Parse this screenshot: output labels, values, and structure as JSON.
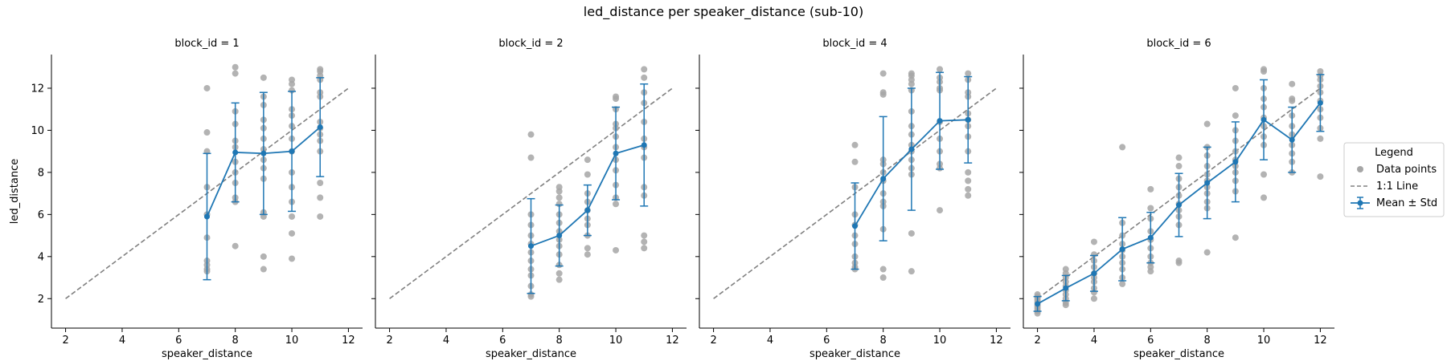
{
  "figure": {
    "title": "led_distance per speaker_distance (sub-10)"
  },
  "legend": {
    "title": "Legend",
    "items": [
      {
        "label": "Data points",
        "kind": "scatter"
      },
      {
        "label": "1:1 Line",
        "kind": "dashed"
      },
      {
        "label": "Mean ± Std",
        "kind": "errorbar"
      }
    ]
  },
  "colors": {
    "points": "#a6a6a6",
    "mean": "#1f77b4",
    "identity": "#808080"
  },
  "chart_data": [
    {
      "type": "scatter",
      "title": "block_id = 1",
      "xlabel": "speaker_distance",
      "ylabel": "led_distance",
      "xlim": [
        1.5,
        12.5
      ],
      "ylim": [
        0.6,
        13.6
      ],
      "xticks": [
        2,
        4,
        6,
        8,
        10,
        12
      ],
      "yticks": [
        2,
        4,
        6,
        8,
        10,
        12
      ],
      "identity_line": [
        [
          2,
          2
        ],
        [
          12,
          12
        ]
      ],
      "mean": {
        "x": [
          7,
          8,
          9,
          10,
          11
        ],
        "y": [
          5.9,
          8.95,
          8.9,
          9.0,
          10.15
        ],
        "std": [
          3.0,
          2.35,
          2.9,
          2.85,
          2.35
        ]
      },
      "points": [
        [
          7,
          12.0
        ],
        [
          7,
          9.9
        ],
        [
          7,
          9.0
        ],
        [
          7,
          7.3
        ],
        [
          7,
          6.0
        ],
        [
          7,
          4.9
        ],
        [
          7,
          3.8
        ],
        [
          7,
          3.6
        ],
        [
          7,
          3.4
        ],
        [
          7,
          3.3
        ],
        [
          8,
          13.0
        ],
        [
          8,
          12.7
        ],
        [
          8,
          10.9
        ],
        [
          8,
          10.3
        ],
        [
          8,
          9.5
        ],
        [
          8,
          9.2
        ],
        [
          8,
          8.5
        ],
        [
          8,
          8.0
        ],
        [
          8,
          7.5
        ],
        [
          8,
          6.8
        ],
        [
          8,
          6.6
        ],
        [
          8,
          4.5
        ],
        [
          9,
          12.5
        ],
        [
          9,
          11.6
        ],
        [
          9,
          11.2
        ],
        [
          9,
          10.5
        ],
        [
          9,
          10.1
        ],
        [
          9,
          9.6
        ],
        [
          9,
          9.1
        ],
        [
          9,
          8.6
        ],
        [
          9,
          8.2
        ],
        [
          9,
          7.7
        ],
        [
          9,
          6.1
        ],
        [
          9,
          5.9
        ],
        [
          9,
          4.0
        ],
        [
          9,
          3.4
        ],
        [
          10,
          12.4
        ],
        [
          10,
          12.2
        ],
        [
          10,
          11.9
        ],
        [
          10,
          11.0
        ],
        [
          10,
          10.7
        ],
        [
          10,
          10.2
        ],
        [
          10,
          9.6
        ],
        [
          10,
          9.0
        ],
        [
          10,
          8.0
        ],
        [
          10,
          7.3
        ],
        [
          10,
          6.6
        ],
        [
          10,
          5.9
        ],
        [
          10,
          5.1
        ],
        [
          10,
          3.9
        ],
        [
          11,
          12.9
        ],
        [
          11,
          12.8
        ],
        [
          11,
          12.6
        ],
        [
          11,
          12.4
        ],
        [
          11,
          11.8
        ],
        [
          11,
          11.6
        ],
        [
          11,
          10.4
        ],
        [
          11,
          10.1
        ],
        [
          11,
          9.8
        ],
        [
          11,
          9.5
        ],
        [
          11,
          9.0
        ],
        [
          11,
          7.5
        ],
        [
          11,
          6.8
        ],
        [
          11,
          5.9
        ]
      ]
    },
    {
      "type": "scatter",
      "title": "block_id = 2",
      "xlabel": "speaker_distance",
      "ylabel": "",
      "xlim": [
        1.5,
        12.5
      ],
      "ylim": [
        0.6,
        13.6
      ],
      "xticks": [
        2,
        4,
        6,
        8,
        10,
        12
      ],
      "yticks": [
        2,
        4,
        6,
        8,
        10,
        12
      ],
      "identity_line": [
        [
          2,
          2
        ],
        [
          12,
          12
        ]
      ],
      "mean": {
        "x": [
          7,
          8,
          9,
          10,
          11
        ],
        "y": [
          4.5,
          5.0,
          6.2,
          8.9,
          9.3
        ],
        "std": [
          2.25,
          1.45,
          1.2,
          2.2,
          2.9
        ]
      },
      "points": [
        [
          7,
          9.8
        ],
        [
          7,
          8.7
        ],
        [
          7,
          6.0
        ],
        [
          7,
          5.5
        ],
        [
          7,
          5.0
        ],
        [
          7,
          4.6
        ],
        [
          7,
          4.2
        ],
        [
          7,
          3.8
        ],
        [
          7,
          3.4
        ],
        [
          7,
          3.1
        ],
        [
          7,
          2.6
        ],
        [
          7,
          2.2
        ],
        [
          7,
          2.1
        ],
        [
          8,
          7.3
        ],
        [
          8,
          7.1
        ],
        [
          8,
          6.8
        ],
        [
          8,
          6.5
        ],
        [
          8,
          6.0
        ],
        [
          8,
          5.6
        ],
        [
          8,
          5.2
        ],
        [
          8,
          4.8
        ],
        [
          8,
          4.5
        ],
        [
          8,
          4.1
        ],
        [
          8,
          3.6
        ],
        [
          8,
          3.2
        ],
        [
          8,
          2.9
        ],
        [
          9,
          8.6
        ],
        [
          9,
          7.9
        ],
        [
          9,
          7.0
        ],
        [
          9,
          6.6
        ],
        [
          9,
          6.2
        ],
        [
          9,
          5.8
        ],
        [
          9,
          5.5
        ],
        [
          9,
          5.0
        ],
        [
          9,
          4.4
        ],
        [
          9,
          4.1
        ],
        [
          10,
          11.6
        ],
        [
          10,
          11.5
        ],
        [
          10,
          11.0
        ],
        [
          10,
          10.3
        ],
        [
          10,
          10.1
        ],
        [
          10,
          9.7
        ],
        [
          10,
          9.2
        ],
        [
          10,
          8.6
        ],
        [
          10,
          8.1
        ],
        [
          10,
          7.4
        ],
        [
          10,
          6.8
        ],
        [
          10,
          6.5
        ],
        [
          10,
          4.3
        ],
        [
          11,
          12.9
        ],
        [
          11,
          12.5
        ],
        [
          11,
          11.8
        ],
        [
          11,
          11.3
        ],
        [
          11,
          10.4
        ],
        [
          11,
          9.6
        ],
        [
          11,
          9.2
        ],
        [
          11,
          8.7
        ],
        [
          11,
          7.3
        ],
        [
          11,
          6.9
        ],
        [
          11,
          5.0
        ],
        [
          11,
          4.7
        ],
        [
          11,
          4.4
        ]
      ]
    },
    {
      "type": "scatter",
      "title": "block_id = 4",
      "xlabel": "speaker_distance",
      "ylabel": "",
      "xlim": [
        1.5,
        12.5
      ],
      "ylim": [
        0.6,
        13.6
      ],
      "xticks": [
        2,
        4,
        6,
        8,
        10,
        12
      ],
      "yticks": [
        2,
        4,
        6,
        8,
        10,
        12
      ],
      "identity_line": [
        [
          2,
          2
        ],
        [
          12,
          12
        ]
      ],
      "mean": {
        "x": [
          7,
          8,
          9,
          10,
          11
        ],
        "y": [
          5.45,
          7.7,
          9.1,
          10.45,
          10.5
        ],
        "std": [
          2.05,
          2.95,
          2.9,
          2.3,
          2.05
        ]
      },
      "points": [
        [
          7,
          9.3
        ],
        [
          7,
          8.5
        ],
        [
          7,
          7.3
        ],
        [
          7,
          6.0
        ],
        [
          7,
          5.5
        ],
        [
          7,
          5.0
        ],
        [
          7,
          4.6
        ],
        [
          7,
          4.0
        ],
        [
          7,
          3.7
        ],
        [
          7,
          3.5
        ],
        [
          7,
          3.4
        ],
        [
          8,
          12.7
        ],
        [
          8,
          11.8
        ],
        [
          8,
          11.7
        ],
        [
          8,
          8.6
        ],
        [
          8,
          8.4
        ],
        [
          8,
          8.0
        ],
        [
          8,
          7.6
        ],
        [
          8,
          7.0
        ],
        [
          8,
          6.6
        ],
        [
          8,
          6.4
        ],
        [
          8,
          5.3
        ],
        [
          8,
          3.4
        ],
        [
          8,
          3.0
        ],
        [
          9,
          12.7
        ],
        [
          9,
          12.6
        ],
        [
          9,
          12.4
        ],
        [
          9,
          12.2
        ],
        [
          9,
          11.9
        ],
        [
          9,
          10.9
        ],
        [
          9,
          10.2
        ],
        [
          9,
          9.8
        ],
        [
          9,
          9.3
        ],
        [
          9,
          9.0
        ],
        [
          9,
          8.6
        ],
        [
          9,
          8.2
        ],
        [
          9,
          7.9
        ],
        [
          9,
          5.1
        ],
        [
          9,
          3.3
        ],
        [
          10,
          12.9
        ],
        [
          10,
          12.5
        ],
        [
          10,
          12.3
        ],
        [
          10,
          12.0
        ],
        [
          10,
          11.9
        ],
        [
          10,
          10.4
        ],
        [
          10,
          9.6
        ],
        [
          10,
          9.0
        ],
        [
          10,
          8.4
        ],
        [
          10,
          8.2
        ],
        [
          10,
          6.2
        ],
        [
          11,
          12.7
        ],
        [
          11,
          12.4
        ],
        [
          11,
          11.8
        ],
        [
          11,
          11.6
        ],
        [
          11,
          10.8
        ],
        [
          11,
          10.5
        ],
        [
          11,
          10.2
        ],
        [
          11,
          9.7
        ],
        [
          11,
          9.0
        ],
        [
          11,
          8.0
        ],
        [
          11,
          7.6
        ],
        [
          11,
          7.2
        ],
        [
          11,
          6.9
        ]
      ]
    },
    {
      "type": "scatter",
      "title": "block_id = 6",
      "xlabel": "speaker_distance",
      "ylabel": "",
      "xlim": [
        1.5,
        12.5
      ],
      "ylim": [
        0.6,
        13.6
      ],
      "xticks": [
        2,
        4,
        6,
        8,
        10,
        12
      ],
      "yticks": [
        2,
        4,
        6,
        8,
        10,
        12
      ],
      "identity_line": [
        [
          2,
          2
        ],
        [
          12,
          12
        ]
      ],
      "mean": {
        "x": [
          2,
          3,
          4,
          5,
          6,
          7,
          8,
          9,
          10,
          11,
          12
        ],
        "y": [
          1.75,
          2.5,
          3.2,
          4.35,
          4.9,
          6.45,
          7.5,
          8.5,
          10.5,
          9.55,
          11.3
        ],
        "std": [
          0.35,
          0.6,
          0.85,
          1.5,
          1.2,
          1.5,
          1.7,
          1.9,
          1.9,
          1.55,
          1.35
        ]
      },
      "points": [
        [
          2,
          2.2
        ],
        [
          2,
          2.1
        ],
        [
          2,
          2.0
        ],
        [
          2,
          1.9
        ],
        [
          2,
          1.8
        ],
        [
          2,
          1.7
        ],
        [
          2,
          1.6
        ],
        [
          2,
          1.5
        ],
        [
          2,
          1.4
        ],
        [
          2,
          1.3
        ],
        [
          3,
          3.4
        ],
        [
          3,
          3.2
        ],
        [
          3,
          3.0
        ],
        [
          3,
          2.8
        ],
        [
          3,
          2.6
        ],
        [
          3,
          2.4
        ],
        [
          3,
          2.2
        ],
        [
          3,
          2.0
        ],
        [
          3,
          1.8
        ],
        [
          3,
          1.7
        ],
        [
          4,
          4.7
        ],
        [
          4,
          4.1
        ],
        [
          4,
          3.8
        ],
        [
          4,
          3.5
        ],
        [
          4,
          3.2
        ],
        [
          4,
          3.0
        ],
        [
          4,
          2.8
        ],
        [
          4,
          2.5
        ],
        [
          4,
          2.3
        ],
        [
          4,
          2.0
        ],
        [
          5,
          9.2
        ],
        [
          5,
          5.6
        ],
        [
          5,
          5.0
        ],
        [
          5,
          4.6
        ],
        [
          5,
          4.3
        ],
        [
          5,
          4.0
        ],
        [
          5,
          3.7
        ],
        [
          5,
          3.4
        ],
        [
          5,
          3.0
        ],
        [
          5,
          2.7
        ],
        [
          6,
          7.2
        ],
        [
          6,
          6.3
        ],
        [
          6,
          5.8
        ],
        [
          6,
          5.2
        ],
        [
          6,
          4.8
        ],
        [
          6,
          4.4
        ],
        [
          6,
          4.0
        ],
        [
          6,
          3.7
        ],
        [
          6,
          3.5
        ],
        [
          6,
          3.3
        ],
        [
          7,
          8.7
        ],
        [
          7,
          8.3
        ],
        [
          7,
          7.7
        ],
        [
          7,
          7.3
        ],
        [
          7,
          6.9
        ],
        [
          7,
          6.5
        ],
        [
          7,
          6.2
        ],
        [
          7,
          5.9
        ],
        [
          7,
          5.5
        ],
        [
          7,
          3.8
        ],
        [
          7,
          3.7
        ],
        [
          8,
          10.3
        ],
        [
          8,
          9.2
        ],
        [
          8,
          8.8
        ],
        [
          8,
          8.3
        ],
        [
          8,
          7.9
        ],
        [
          8,
          7.6
        ],
        [
          8,
          7.3
        ],
        [
          8,
          7.0
        ],
        [
          8,
          6.6
        ],
        [
          8,
          6.3
        ],
        [
          8,
          4.2
        ],
        [
          9,
          12.0
        ],
        [
          9,
          10.7
        ],
        [
          9,
          10.0
        ],
        [
          9,
          9.5
        ],
        [
          9,
          9.0
        ],
        [
          9,
          8.6
        ],
        [
          9,
          8.3
        ],
        [
          9,
          8.0
        ],
        [
          9,
          7.6
        ],
        [
          9,
          7.1
        ],
        [
          9,
          4.9
        ],
        [
          10,
          12.9
        ],
        [
          10,
          12.8
        ],
        [
          10,
          12.0
        ],
        [
          10,
          11.5
        ],
        [
          10,
          11.1
        ],
        [
          10,
          10.6
        ],
        [
          10,
          10.2
        ],
        [
          10,
          9.7
        ],
        [
          10,
          9.3
        ],
        [
          10,
          7.9
        ],
        [
          10,
          6.8
        ],
        [
          11,
          12.2
        ],
        [
          11,
          11.5
        ],
        [
          11,
          11.4
        ],
        [
          11,
          10.7
        ],
        [
          11,
          10.2
        ],
        [
          11,
          9.8
        ],
        [
          11,
          9.3
        ],
        [
          11,
          8.9
        ],
        [
          11,
          8.5
        ],
        [
          11,
          8.0
        ],
        [
          12,
          12.8
        ],
        [
          12,
          12.6
        ],
        [
          12,
          12.4
        ],
        [
          12,
          12.1
        ],
        [
          12,
          11.8
        ],
        [
          12,
          11.4
        ],
        [
          12,
          11.0
        ],
        [
          12,
          10.6
        ],
        [
          12,
          10.1
        ],
        [
          12,
          9.6
        ],
        [
          12,
          7.8
        ]
      ]
    }
  ]
}
